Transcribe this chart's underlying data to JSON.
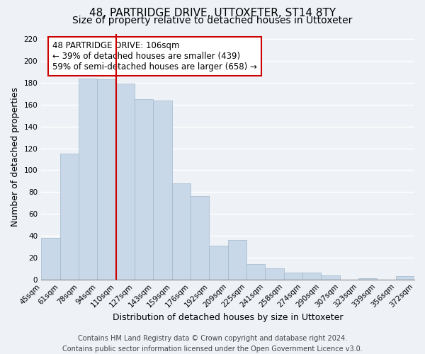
{
  "title": "48, PARTRIDGE DRIVE, UTTOXETER, ST14 8TY",
  "subtitle": "Size of property relative to detached houses in Uttoxeter",
  "xlabel": "Distribution of detached houses by size in Uttoxeter",
  "ylabel": "Number of detached properties",
  "footer_line1": "Contains HM Land Registry data © Crown copyright and database right 2024.",
  "footer_line2": "Contains public sector information licensed under the Open Government Licence v3.0.",
  "tick_labels": [
    "45sqm",
    "61sqm",
    "78sqm",
    "94sqm",
    "110sqm",
    "127sqm",
    "143sqm",
    "159sqm",
    "176sqm",
    "192sqm",
    "209sqm",
    "225sqm",
    "241sqm",
    "258sqm",
    "274sqm",
    "290sqm",
    "307sqm",
    "323sqm",
    "339sqm",
    "356sqm",
    "372sqm"
  ],
  "values": [
    38,
    115,
    184,
    183,
    179,
    165,
    164,
    88,
    76,
    31,
    36,
    14,
    10,
    6,
    6,
    4,
    0,
    1,
    0,
    3
  ],
  "bar_color": "#c8d8e8",
  "bar_edge_color": "#a0b8cc",
  "highlight_bar_index": 4,
  "highlight_line_color": "#cc0000",
  "annotation_text": "48 PARTRIDGE DRIVE: 106sqm\n← 39% of detached houses are smaller (439)\n59% of semi-detached houses are larger (658) →",
  "annotation_box_color": "#ffffff",
  "annotation_box_edge_color": "#cc0000",
  "ylim": [
    0,
    225
  ],
  "yticks": [
    0,
    20,
    40,
    60,
    80,
    100,
    120,
    140,
    160,
    180,
    200,
    220
  ],
  "background_color": "#eef2f7",
  "grid_color": "#ffffff",
  "title_fontsize": 11,
  "subtitle_fontsize": 10,
  "axis_label_fontsize": 9,
  "tick_fontsize": 7.5,
  "annotation_fontsize": 8.5,
  "footer_fontsize": 7
}
